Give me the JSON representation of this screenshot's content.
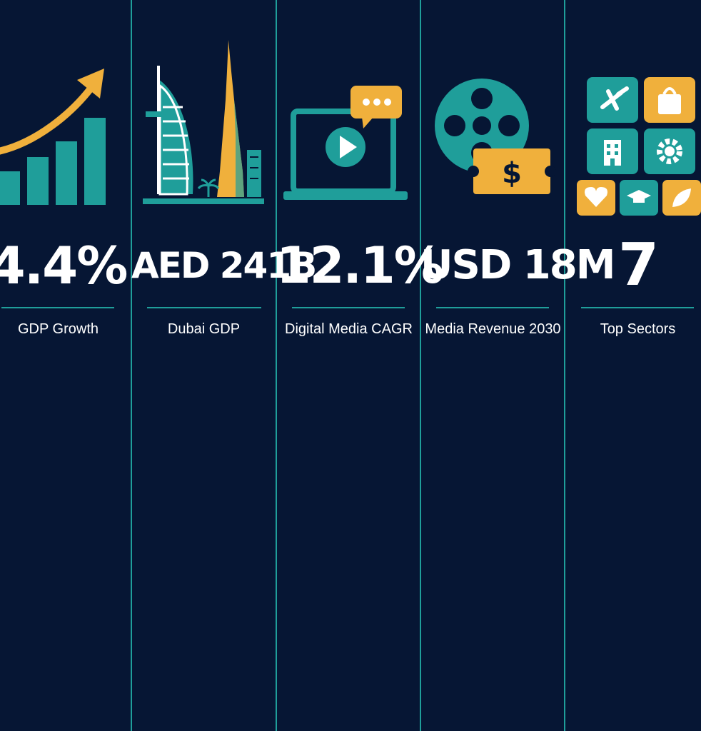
{
  "colors": {
    "background": "#061634",
    "teal": "#1f9e9a",
    "gold": "#f0b03c",
    "text": "#ffffff"
  },
  "stats": [
    {
      "value": "4.4%",
      "label": "GDP Growth",
      "icon": "growth-chart-icon"
    },
    {
      "value": "AED 241B",
      "label": "Dubai GDP",
      "icon": "dubai-skyline-icon"
    },
    {
      "value": "12.1%",
      "label": "Digital Media CAGR",
      "icon": "laptop-video-icon"
    },
    {
      "value": "USD 18M",
      "label": "Media Revenue 2030",
      "icon": "film-reel-money-icon"
    },
    {
      "value": "7",
      "label": "Top Sectors",
      "icon": "sector-tiles-icon"
    }
  ]
}
